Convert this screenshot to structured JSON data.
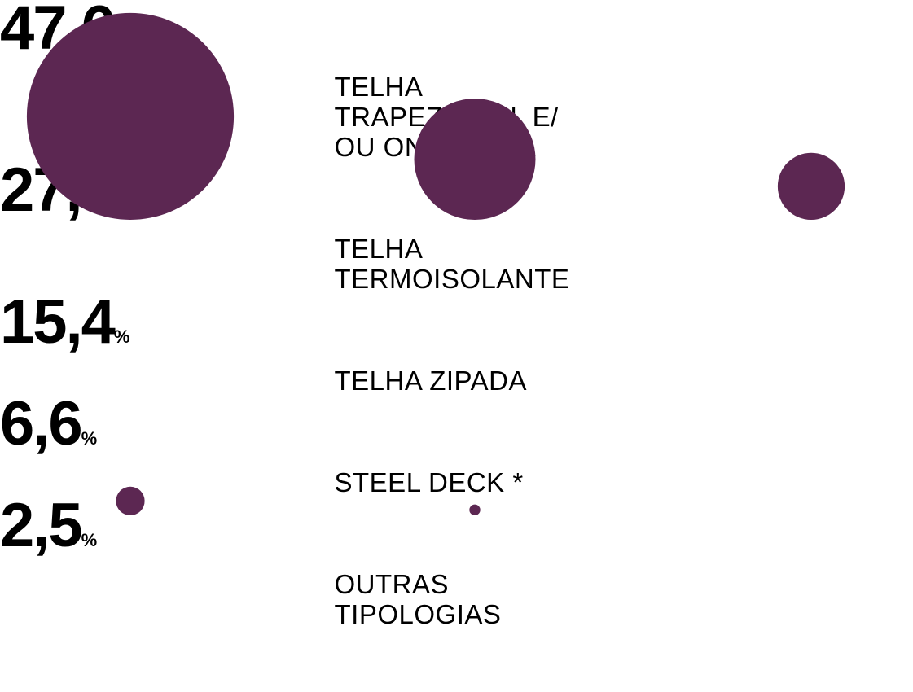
{
  "chart_data": {
    "type": "bubble",
    "categories": [
      "TELHA TRAPEZOIDAL E/ OU ONDULADA",
      "TELHA TERMOISOLANTE",
      "TELHA ZIPADA",
      "STEEL DECK *",
      "OUTRAS TIPOLOGIAS"
    ],
    "values": [
      47.6,
      27.9,
      15.4,
      6.6,
      2.5
    ],
    "value_labels": [
      "47,6",
      "27,9",
      "15,4",
      "6,6",
      "2,5"
    ],
    "unit": "%",
    "color": "#5c2752"
  }
}
